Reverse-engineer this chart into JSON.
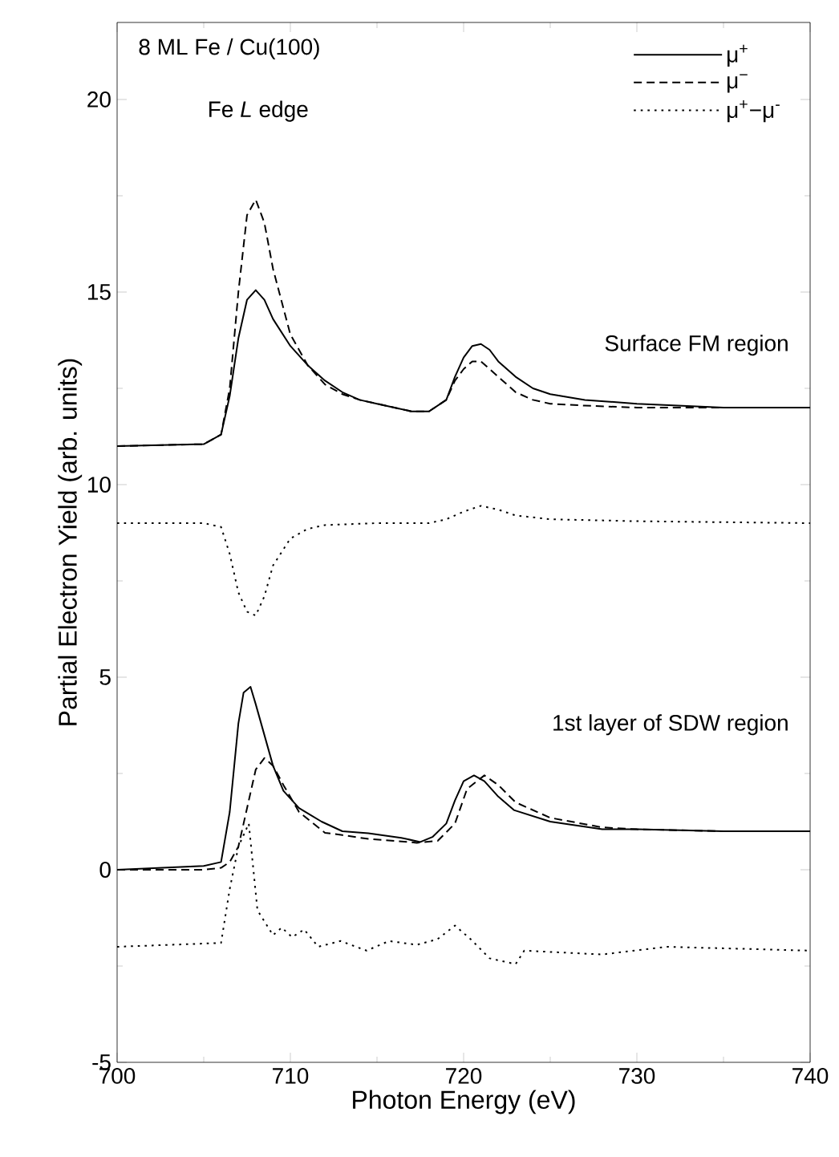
{
  "chart_data": {
    "type": "line",
    "xlabel": "Photon Energy (eV)",
    "ylabel": "Partial Electron Yield (arb. units)",
    "xlim": [
      700,
      740
    ],
    "ylim": [
      -5,
      22
    ],
    "xticks": [
      700,
      {
        "value": 705,
        "label": null
      },
      710,
      {
        "value": 715,
        "label": null
      },
      720,
      {
        "value": 725,
        "label": null
      },
      730,
      {
        "value": 735,
        "label": null
      },
      740
    ],
    "yticks": [
      -5,
      {
        "value": -2.5,
        "label": null
      },
      0,
      {
        "value": 2.5,
        "label": null
      },
      5,
      {
        "value": 7.5,
        "label": null
      },
      10,
      {
        "value": 12.5,
        "label": null
      },
      15,
      {
        "value": 17.5,
        "label": null
      },
      20
    ],
    "grid": false,
    "legend": "top right",
    "marker": "none",
    "annotations": [
      "8 ML Fe / Cu(100)",
      "Fe *L* edge",
      "Surface FM region",
      "1st layer of SDW region"
    ],
    "series": [
      {
        "name": "μ$^{+}$",
        "color": "#000000",
        "line_style": "solid",
        "x": [
          700,
          705,
          706,
          706.5,
          707,
          707.5,
          708,
          708.5,
          709,
          710,
          711,
          712,
          713,
          714,
          715,
          716,
          717,
          718,
          719,
          719.5,
          720,
          720.5,
          721,
          721.5,
          722,
          723,
          724,
          725,
          727,
          730,
          735,
          740
        ],
        "values": [
          11,
          11.05,
          11.3,
          12.3,
          13.8,
          14.8,
          15.05,
          14.8,
          14.3,
          13.6,
          13.1,
          12.7,
          12.4,
          12.2,
          12.1,
          12.0,
          11.9,
          11.9,
          12.2,
          12.8,
          13.3,
          13.6,
          13.65,
          13.5,
          13.2,
          12.8,
          12.5,
          12.35,
          12.2,
          12.1,
          12.0,
          12.0
        ]
      },
      {
        "name": "μ$^{−}$",
        "color": "#000000",
        "line_style": "dashed",
        "x": [
          700,
          705,
          706,
          706.5,
          707,
          707.5,
          708,
          708.5,
          709,
          710,
          711,
          712,
          713,
          714,
          715,
          716,
          717,
          718,
          719,
          719.5,
          720,
          720.5,
          721,
          721.5,
          722,
          723,
          724,
          725,
          727,
          730,
          735,
          740
        ],
        "values": [
          11,
          11.05,
          11.3,
          12.5,
          15.0,
          17.0,
          17.4,
          16.8,
          15.6,
          13.9,
          13.1,
          12.6,
          12.35,
          12.2,
          12.1,
          12.0,
          11.9,
          11.9,
          12.2,
          12.7,
          13.0,
          13.2,
          13.2,
          13.0,
          12.8,
          12.4,
          12.2,
          12.1,
          12.05,
          12.0,
          12.0,
          12.0
        ]
      },
      {
        "name": "μ$^{+}$−μ$^{-}$",
        "color": "#000000",
        "line_style": "dotted",
        "x": [
          700,
          705,
          706,
          706.5,
          707,
          707.5,
          708,
          708.5,
          709,
          710,
          711,
          712,
          715,
          718,
          719,
          720,
          721,
          722,
          723,
          725,
          730,
          740
        ],
        "values": [
          9,
          9,
          8.9,
          8.2,
          7.2,
          6.7,
          6.6,
          7.1,
          7.9,
          8.6,
          8.85,
          8.95,
          9.0,
          9.0,
          9.1,
          9.3,
          9.45,
          9.35,
          9.2,
          9.1,
          9.05,
          9.0
        ]
      },
      {
        "color": "#000000",
        "line_style": "solid",
        "x": [
          700,
          705,
          706,
          706.5,
          707,
          707.3,
          707.7,
          708,
          708.5,
          709,
          709.6,
          710.5,
          711.8,
          713,
          714.5,
          716.4,
          717.5,
          718.2,
          719,
          719.5,
          720,
          720.6,
          721.2,
          722,
          722.9,
          725,
          728,
          730,
          735,
          740
        ],
        "values": [
          0,
          0.1,
          0.2,
          1.5,
          3.8,
          4.6,
          4.75,
          4.3,
          3.5,
          2.7,
          2.05,
          1.6,
          1.25,
          1.0,
          0.95,
          0.83,
          0.72,
          0.85,
          1.2,
          1.8,
          2.3,
          2.45,
          2.3,
          1.9,
          1.55,
          1.25,
          1.05,
          1.05,
          1.0,
          1.0
        ]
      },
      {
        "color": "#000000",
        "line_style": "dashed",
        "x": [
          700,
          705,
          706,
          706.5,
          707,
          707.5,
          708,
          708.5,
          709,
          709.6,
          710.5,
          712,
          713,
          714.5,
          716,
          717.3,
          718.5,
          719.5,
          720.2,
          721.2,
          722,
          723,
          725,
          728,
          730,
          735,
          740
        ],
        "values": [
          0,
          0,
          0.05,
          0.2,
          0.6,
          1.6,
          2.6,
          2.9,
          2.7,
          2.2,
          1.5,
          0.96,
          0.9,
          0.8,
          0.75,
          0.7,
          0.75,
          1.2,
          2.1,
          2.45,
          2.2,
          1.75,
          1.35,
          1.1,
          1.05,
          1.0,
          1.0
        ]
      },
      {
        "color": "#000000",
        "line_style": "dotted",
        "x": [
          700,
          706,
          706.5,
          707,
          707.6,
          708.1,
          709,
          709.5,
          710.1,
          710.8,
          711.6,
          712.9,
          714.4,
          715.7,
          717.3,
          718.5,
          719.5,
          720.4,
          721.5,
          723,
          723.5,
          728,
          731.7,
          740
        ],
        "values": [
          -2,
          -1.9,
          -0.5,
          0.6,
          1.2,
          -1.05,
          -1.7,
          -1.5,
          -1.75,
          -1.55,
          -2.0,
          -1.85,
          -2.1,
          -1.85,
          -1.95,
          -1.8,
          -1.45,
          -1.8,
          -2.3,
          -2.45,
          -2.1,
          -2.2,
          -2.0,
          -2.1
        ]
      }
    ]
  }
}
